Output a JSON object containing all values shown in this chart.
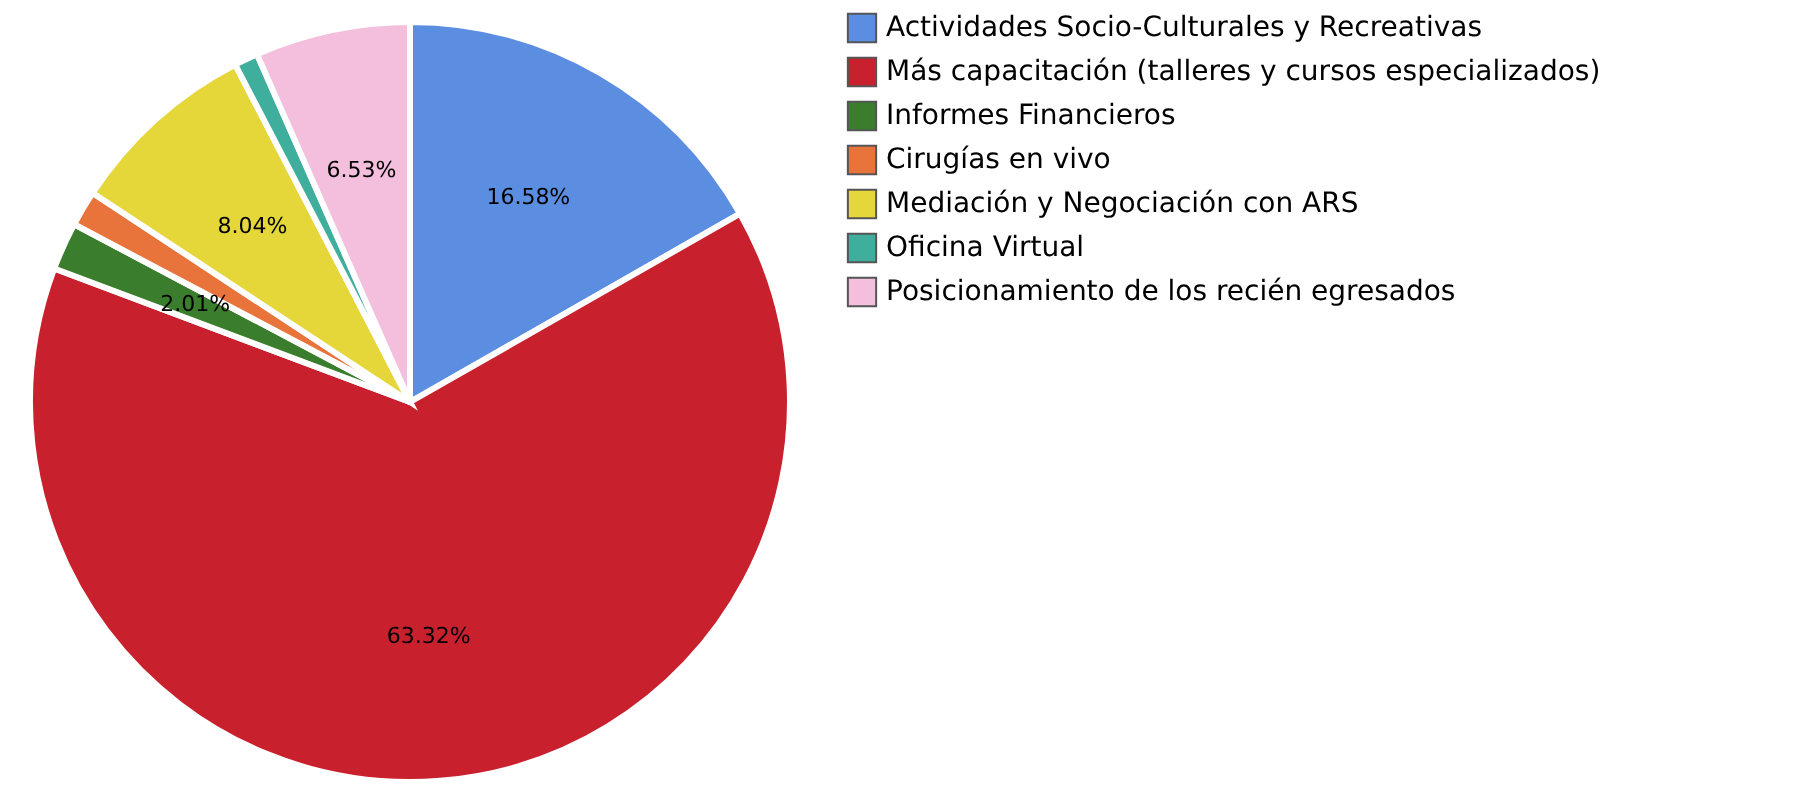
{
  "chart_data": {
    "type": "pie",
    "categories": [
      "Actividades Socio-Culturales y Recreativas",
      "Más capacitación (talleres y cursos especializados)",
      "Informes Financieros",
      "Cirugías en vivo",
      "Mediación y Negociación con ARS",
      "Oficina Virtual",
      "Posicionamiento de los recién egresados"
    ],
    "values": [
      16.58,
      63.32,
      2.01,
      1.51,
      8.04,
      1.0,
      6.53
    ],
    "colors": [
      "#5b8ee0",
      "#c8202c",
      "#3a7d2c",
      "#e8743b",
      "#e5d63a",
      "#3fae9c",
      "#f3bfdc"
    ],
    "value_labels": [
      "16.58%",
      "63.32%",
      "2.01%",
      null,
      "8.04%",
      null,
      "6.53%"
    ],
    "legend": "right"
  }
}
